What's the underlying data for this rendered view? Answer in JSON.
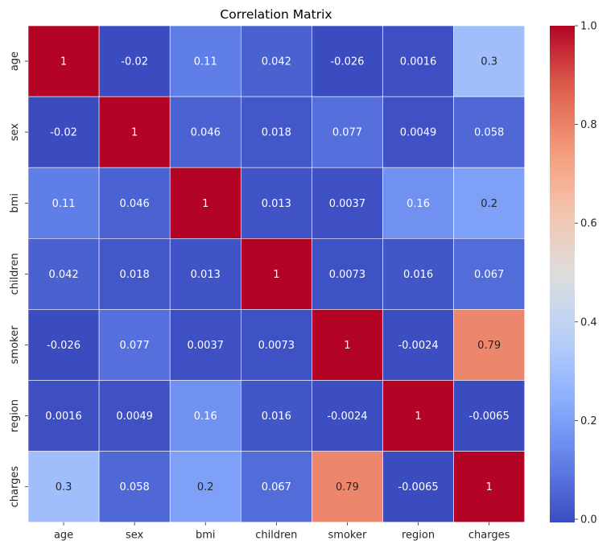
{
  "chart_data": {
    "type": "heatmap",
    "title": "Correlation Matrix",
    "x_labels": [
      "age",
      "sex",
      "bmi",
      "children",
      "smoker",
      "region",
      "charges"
    ],
    "y_labels": [
      "age",
      "sex",
      "bmi",
      "children",
      "smoker",
      "region",
      "charges"
    ],
    "values": [
      [
        1,
        -0.02,
        0.11,
        0.042,
        -0.026,
        0.0016,
        0.3
      ],
      [
        -0.02,
        1,
        0.046,
        0.018,
        0.077,
        0.0049,
        0.058
      ],
      [
        0.11,
        0.046,
        1,
        0.013,
        0.0037,
        0.16,
        0.2
      ],
      [
        0.042,
        0.018,
        0.013,
        1,
        0.0073,
        0.016,
        0.067
      ],
      [
        -0.026,
        0.077,
        0.0037,
        0.0073,
        1,
        -0.0024,
        0.79
      ],
      [
        0.0016,
        0.0049,
        0.16,
        0.016,
        -0.0024,
        1,
        -0.0065
      ],
      [
        0.3,
        0.058,
        0.2,
        0.067,
        0.79,
        -0.0065,
        1
      ]
    ],
    "cell_labels": [
      [
        "1",
        "-0.02",
        "0.11",
        "0.042",
        "-0.026",
        "0.0016",
        "0.3"
      ],
      [
        "-0.02",
        "1",
        "0.046",
        "0.018",
        "0.077",
        "0.0049",
        "0.058"
      ],
      [
        "0.11",
        "0.046",
        "1",
        "0.013",
        "0.0037",
        "0.16",
        "0.2"
      ],
      [
        "0.042",
        "0.018",
        "0.013",
        "1",
        "0.0073",
        "0.016",
        "0.067"
      ],
      [
        "-0.026",
        "0.077",
        "0.0037",
        "0.0073",
        "1",
        "-0.0024",
        "0.79"
      ],
      [
        "0.0016",
        "0.0049",
        "0.16",
        "0.016",
        "-0.0024",
        "1",
        "-0.0065"
      ],
      [
        "0.3",
        "0.058",
        "0.2",
        "0.067",
        "0.79",
        "-0.0065",
        "1"
      ]
    ],
    "colormap": "coolwarm",
    "colorbar": {
      "range": [
        -0.0065,
        1
      ],
      "ticks": [
        0.0,
        0.2,
        0.4,
        0.6,
        0.8,
        1.0
      ],
      "tick_labels": [
        "0.0",
        "0.2",
        "0.4",
        "0.6",
        "0.8",
        "1.0"
      ]
    },
    "grid_line_color": "#ffffff"
  }
}
